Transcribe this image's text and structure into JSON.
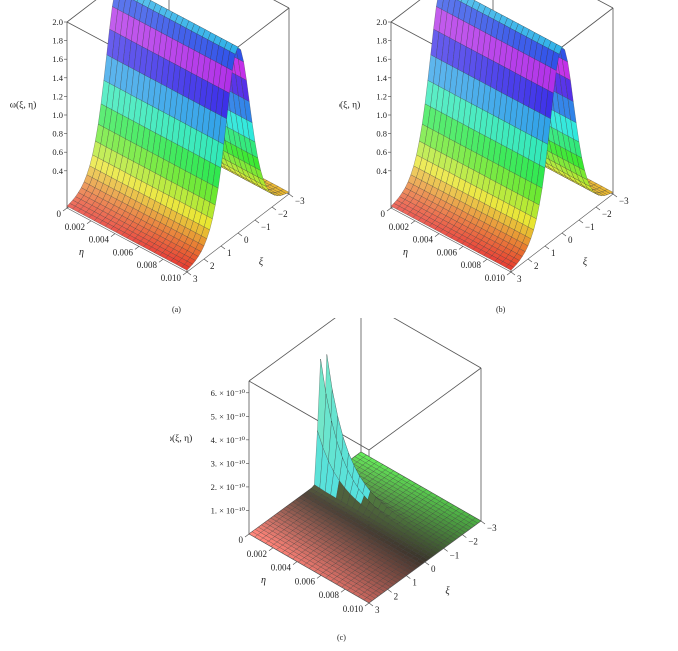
{
  "chart_data": [
    {
      "panel": "a",
      "type": "surface",
      "caption": "(a)",
      "zlabel": "ω(ξ, η)",
      "xlabel": "ξ",
      "ylabel": "η",
      "xlim": [
        -3,
        3
      ],
      "ylim": [
        0,
        0.01
      ],
      "zlim": [
        0,
        2.0
      ],
      "x_ticks": [
        "-3",
        "-2",
        "-1",
        "0",
        "1",
        "2",
        "3"
      ],
      "y_ticks": [
        "0",
        "0.002",
        "0.004",
        "0.006",
        "0.008",
        "0.010"
      ],
      "z_ticks": [
        "0.4",
        "0.6",
        "0.8",
        "1.0",
        "1.2",
        "1.4",
        "1.6",
        "1.8",
        "2.0"
      ],
      "surface": {
        "form": "sech2_ridge",
        "amplitude": 2.0,
        "center": 0.0,
        "width": 1.0
      }
    },
    {
      "panel": "b",
      "type": "surface",
      "caption": "(b)",
      "zlabel": "ω(ξ, η)",
      "xlabel": "ξ",
      "ylabel": "η",
      "xlim": [
        -3,
        3
      ],
      "ylim": [
        0,
        0.01
      ],
      "zlim": [
        0,
        2.0
      ],
      "x_ticks": [
        "-3",
        "-2",
        "-1",
        "0",
        "1",
        "2",
        "3"
      ],
      "y_ticks": [
        "0",
        "0.002",
        "0.004",
        "0.006",
        "0.008",
        "0.010"
      ],
      "z_ticks": [
        "0.4",
        "0.6",
        "0.8",
        "1.0",
        "1.2",
        "1.4",
        "1.6",
        "1.8",
        "2.0"
      ],
      "surface": {
        "form": "sech2_ridge",
        "amplitude": 2.0,
        "center": 0.0,
        "width": 1.0
      }
    },
    {
      "panel": "c",
      "type": "surface",
      "caption": "(c)",
      "zlabel": "ω(ξ, η)",
      "xlabel": "ξ",
      "ylabel": "η",
      "xlim": [
        -3,
        3
      ],
      "ylim": [
        0,
        0.01
      ],
      "zlim": [
        0,
        6.5e-10
      ],
      "x_ticks": [
        "-3",
        "-2",
        "-1",
        "0",
        "1",
        "2",
        "3"
      ],
      "y_ticks": [
        "0",
        "0.002",
        "0.004",
        "0.006",
        "0.008",
        "0.010"
      ],
      "z_ticks": [
        "1. × 10⁻¹⁰",
        "2. × 10⁻¹⁰",
        "3. × 10⁻¹⁰",
        "4. × 10⁻¹⁰",
        "5. × 10⁻¹⁰",
        "6. × 10⁻¹⁰"
      ],
      "surface": {
        "form": "spikes_near_eta0",
        "peak": 5.5e-10,
        "xi_peaks": [
          -1.2,
          -0.8
        ],
        "eta_decay": 0.0015
      }
    }
  ]
}
